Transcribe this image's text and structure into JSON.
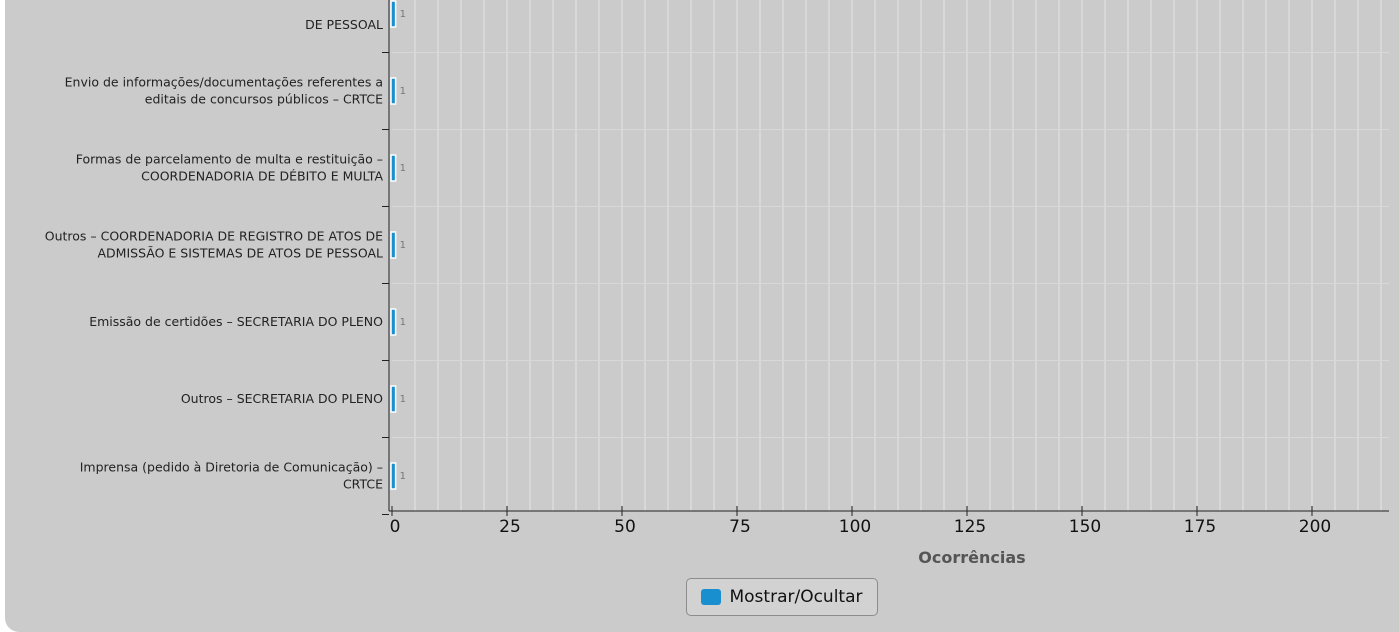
{
  "chart_data": {
    "type": "bar",
    "orientation": "horizontal",
    "categories": [
      [
        "DE PESSOAL"
      ],
      [
        "Envio de informações/documentações referentes a",
        "editais de concursos públicos – CRTCE"
      ],
      [
        "Formas de parcelamento de multa e restituição –",
        "COORDENADORIA DE DÉBITO E MULTA"
      ],
      [
        "Outros – COORDENADORIA DE REGISTRO DE ATOS DE",
        "ADMISSÃO E SISTEMAS DE ATOS DE PESSOAL"
      ],
      [
        "Emissão de certidões – SECRETARIA DO PLENO"
      ],
      [
        "Outros – SECRETARIA DO PLENO"
      ],
      [
        "Imprensa (pedido à Diretoria de Comunicação) –",
        "CRTCE"
      ]
    ],
    "values": [
      1,
      1,
      1,
      1,
      1,
      1,
      1
    ],
    "data_labels": [
      "1",
      "1",
      "1",
      "1",
      "1",
      "1",
      "1"
    ],
    "xlim": [
      0,
      215
    ],
    "x_ticks": [
      0,
      25,
      50,
      75,
      100,
      125,
      150,
      175,
      200
    ],
    "x_tick_labels": [
      "0",
      "25",
      "50",
      "75",
      "100",
      "125",
      "150",
      "175",
      "200"
    ],
    "xlabel": "Ocorrências",
    "minor_gridline_step": 5,
    "grid": true,
    "bar_color": "#1a8fd0",
    "legend": {
      "label": "Mostrar/Ocultar",
      "position": "bottom-center",
      "swatch_color": "#1a8fd0"
    }
  }
}
